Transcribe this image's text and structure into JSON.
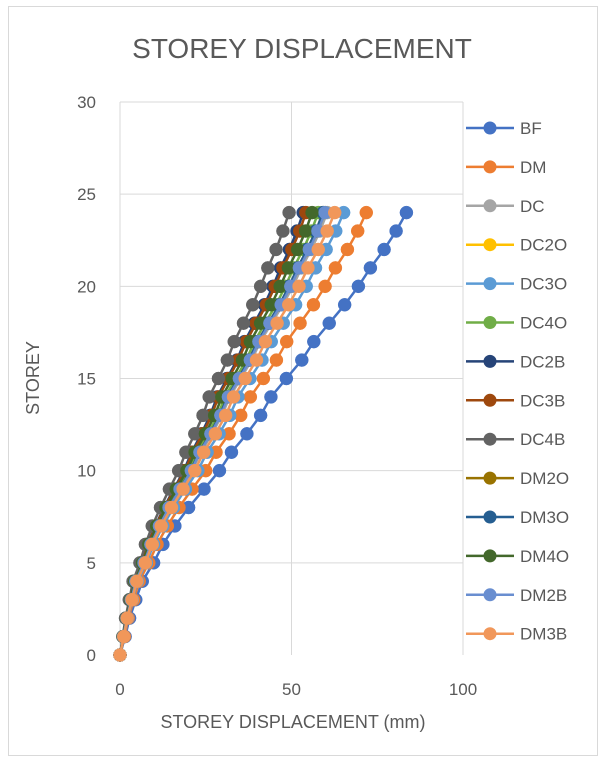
{
  "chart_data": {
    "type": "line",
    "title": "STOREY DISPLACEMENT",
    "xlabel": "STOREY DISPLACEMENT (mm)",
    "ylabel": "STOREY",
    "xlim": [
      0,
      100
    ],
    "ylim": [
      0,
      30
    ],
    "x_ticks": [
      "0",
      "50",
      "100"
    ],
    "y_ticks": [
      "0",
      "5",
      "10",
      "15",
      "20",
      "25",
      "30"
    ],
    "grid": "major gridlines on both axes",
    "legend_position": "right",
    "y": [
      0,
      1,
      2,
      3,
      4,
      5,
      6,
      7,
      8,
      9,
      10,
      11,
      12,
      13,
      14,
      15,
      16,
      17,
      18,
      19,
      20,
      21,
      22,
      23,
      24
    ],
    "series": [
      {
        "name": "BF",
        "color": "#4472C4",
        "x": [
          0,
          1.5,
          2.8,
          4.6,
          6.5,
          9.8,
          12.5,
          16,
          20,
          24.5,
          29,
          32.5,
          37,
          41,
          44,
          48.5,
          53,
          56.5,
          61,
          65.5,
          69.5,
          73,
          77,
          80.5,
          83.5
        ]
      },
      {
        "name": "DM",
        "color": "#ED7D31",
        "x": [
          0,
          1.3,
          2.4,
          4,
          5.6,
          8.4,
          10.8,
          13.8,
          17.2,
          21,
          25,
          28,
          31.8,
          35.2,
          38,
          41.8,
          45.6,
          48.6,
          52.5,
          56.4,
          59.8,
          62.8,
          66.3,
          69.3,
          71.8
        ]
      },
      {
        "name": "DC",
        "color": "#A5A5A5",
        "x": [
          0,
          1,
          2,
          3.4,
          4.7,
          7.1,
          9.1,
          11.6,
          14.5,
          17.7,
          21,
          23.6,
          26.8,
          29.7,
          32,
          35.2,
          38.4,
          40.9,
          44.2,
          47.5,
          50.4,
          52.9,
          55.8,
          58.3,
          60.4
        ]
      },
      {
        "name": "DC2O",
        "color": "#FFC000",
        "x": [
          0,
          1,
          2,
          3.3,
          4.6,
          7,
          9,
          11.5,
          14.3,
          17.5,
          20.8,
          23.3,
          26.5,
          29.4,
          31.6,
          34.8,
          38,
          40.5,
          43.7,
          47,
          49.8,
          52.3,
          55.2,
          57.7,
          59.8
        ]
      },
      {
        "name": "DC3O",
        "color": "#5B9BD5",
        "x": [
          0,
          1.1,
          2.2,
          3.6,
          5.1,
          7.7,
          9.8,
          12.5,
          15.6,
          19.1,
          22.7,
          25.4,
          28.9,
          32,
          34.4,
          37.9,
          41.4,
          44.1,
          47.6,
          51.2,
          54.3,
          57,
          60.1,
          62.9,
          65.2
        ]
      },
      {
        "name": "DC4O",
        "color": "#70AD47",
        "x": [
          0,
          1,
          1.9,
          3.2,
          4.5,
          6.8,
          8.7,
          11.1,
          13.9,
          17,
          20.2,
          22.6,
          25.7,
          28.5,
          30.6,
          33.7,
          36.8,
          39.2,
          42.3,
          45.5,
          48.2,
          50.6,
          53.4,
          55.8,
          57.8
        ]
      },
      {
        "name": "DC2B",
        "color": "#264478",
        "x": [
          0,
          0.9,
          1.8,
          3,
          4.2,
          6.3,
          8,
          10.3,
          12.8,
          15.7,
          18.6,
          20.9,
          23.7,
          26.3,
          28.3,
          31.2,
          34.1,
          36.3,
          39.2,
          42.1,
          44.6,
          46.8,
          49.4,
          51.6,
          53.4
        ]
      },
      {
        "name": "DC3B",
        "color": "#9E480E",
        "x": [
          0,
          0.9,
          1.8,
          3,
          4.2,
          6.4,
          8.1,
          10.4,
          13,
          15.9,
          18.9,
          21.2,
          24.1,
          26.7,
          28.7,
          31.6,
          34.5,
          36.8,
          39.7,
          42.7,
          45.2,
          47.5,
          50.1,
          52.4,
          54.2
        ]
      },
      {
        "name": "DC4B",
        "color": "#636363",
        "x": [
          0,
          0.8,
          1.6,
          2.7,
          3.8,
          5.8,
          7.4,
          9.4,
          11.8,
          14.4,
          17.1,
          19.2,
          21.8,
          24.2,
          26,
          28.7,
          31.3,
          33.3,
          36,
          38.7,
          41,
          43.1,
          45.5,
          47.5,
          49.3
        ]
      },
      {
        "name": "DM2O",
        "color": "#997300",
        "x": [
          0,
          1,
          2,
          3.3,
          4.6,
          7,
          8.9,
          11.4,
          14.2,
          17.4,
          20.6,
          23.1,
          26.3,
          29.1,
          31.3,
          34.5,
          37.6,
          40.1,
          43.3,
          46.5,
          49.3,
          51.8,
          54.6,
          57.1,
          59.2
        ]
      },
      {
        "name": "DM3O",
        "color": "#255E91",
        "x": [
          0,
          1,
          2,
          3.3,
          4.6,
          7,
          8.9,
          11.4,
          14.2,
          17.4,
          20.6,
          23.1,
          26.3,
          29.1,
          31.3,
          34.5,
          37.6,
          40.1,
          43.3,
          46.5,
          49.3,
          51.8,
          54.6,
          57.1,
          59.2
        ]
      },
      {
        "name": "DM4O",
        "color": "#43682B",
        "x": [
          0,
          0.9,
          1.9,
          3.1,
          4.3,
          6.6,
          8.4,
          10.7,
          13.4,
          16.4,
          19.5,
          21.9,
          24.9,
          27.6,
          29.7,
          32.7,
          35.7,
          38,
          41,
          44.1,
          46.7,
          49.1,
          51.8,
          54.1,
          56
        ]
      },
      {
        "name": "DM2B",
        "color": "#698ED0",
        "x": [
          0,
          1,
          2,
          3.3,
          4.6,
          7,
          9,
          11.5,
          14.3,
          17.5,
          20.8,
          23.3,
          26.5,
          29.4,
          31.6,
          34.8,
          38,
          40.5,
          43.7,
          47,
          49.8,
          52.3,
          55.2,
          57.7,
          59.8
        ]
      },
      {
        "name": "DM3B",
        "color": "#F1975A",
        "x": [
          0,
          1.1,
          2.1,
          3.5,
          4.9,
          7.4,
          9.4,
          12,
          15,
          18.4,
          21.8,
          24.4,
          27.8,
          30.8,
          33.1,
          36.5,
          39.8,
          42.4,
          45.8,
          49.2,
          52.2,
          54.8,
          57.8,
          60.4,
          62.6
        ]
      }
    ]
  }
}
